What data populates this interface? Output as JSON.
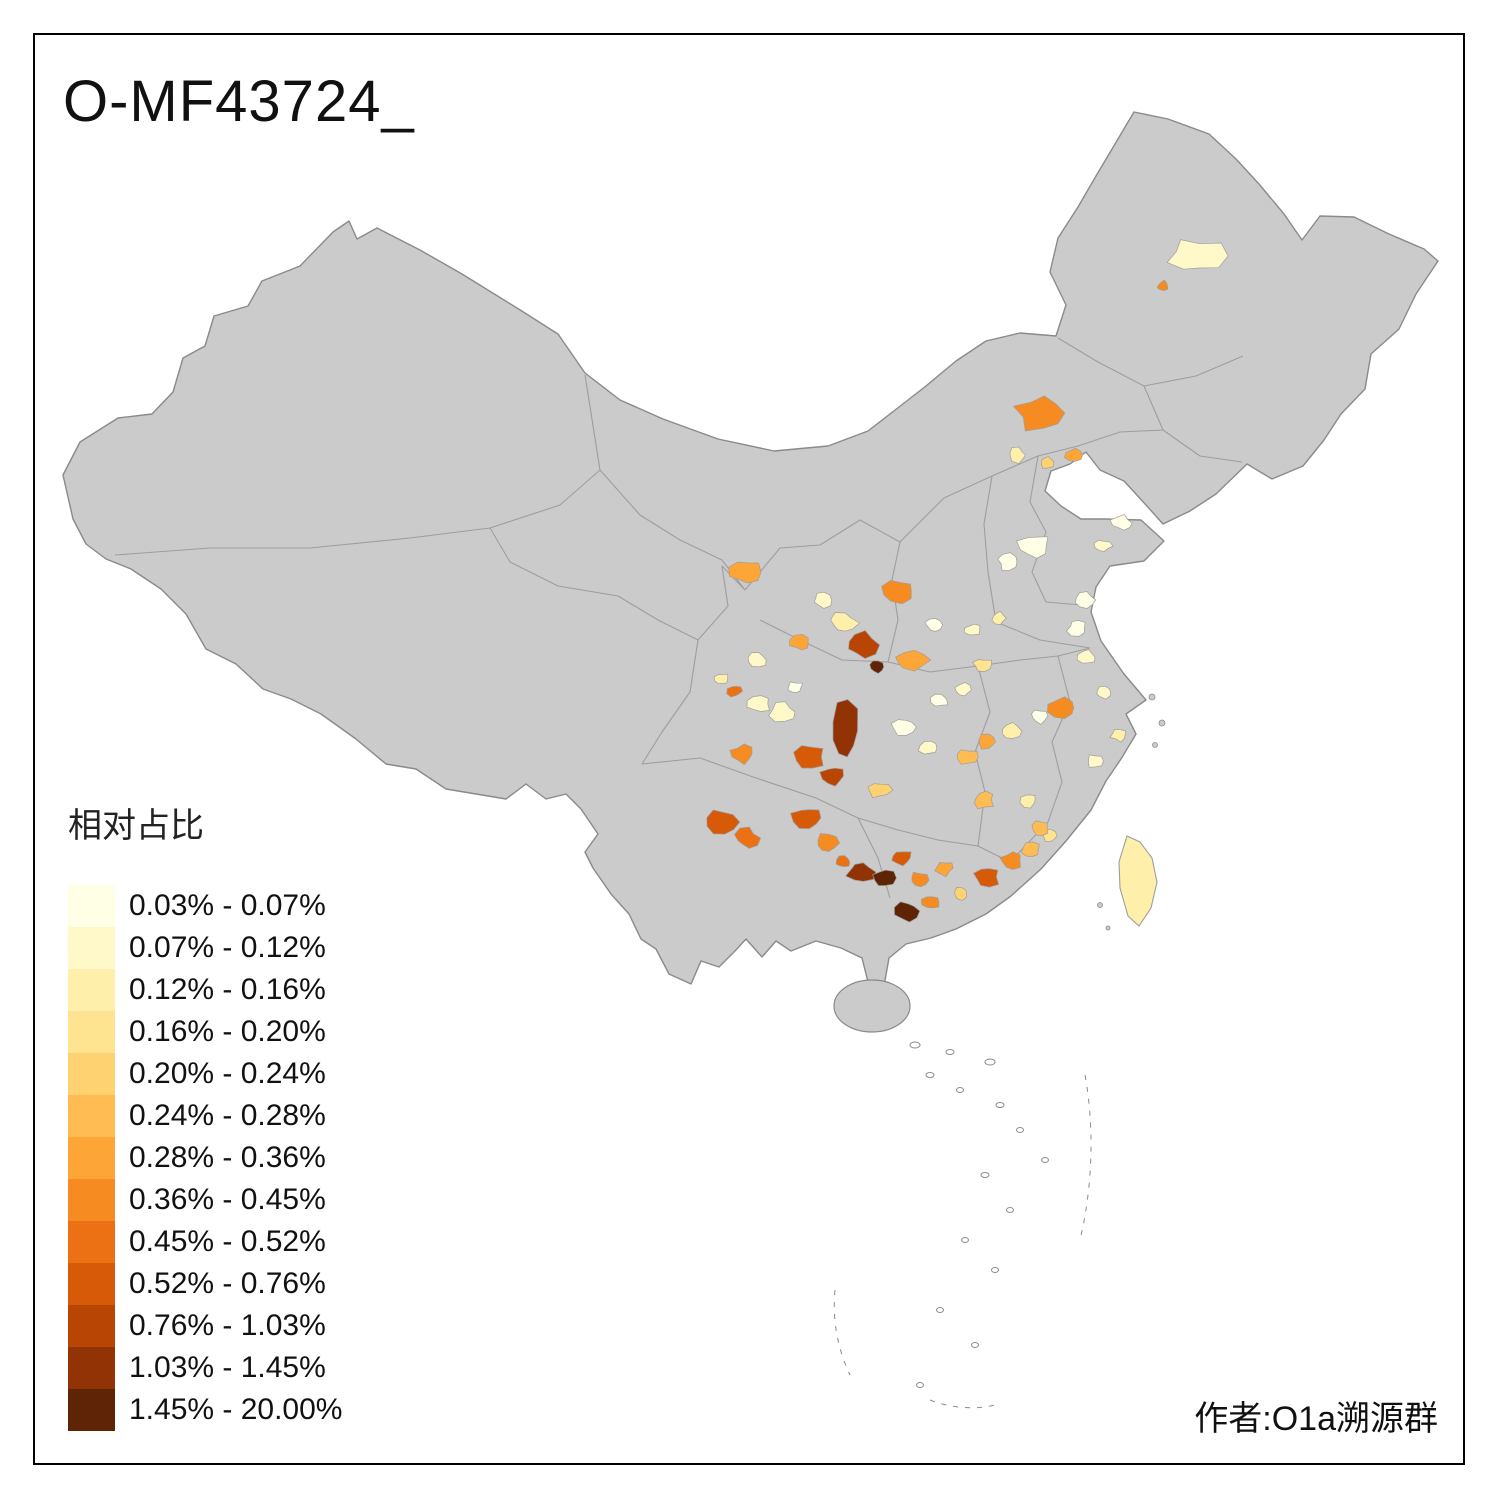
{
  "title": "O-MF43724_",
  "attribution": "作者:O1a溯源群",
  "legend": {
    "title": "相对占比",
    "items": [
      {
        "label": "0.03% - 0.07%",
        "color": "#FFFFE5"
      },
      {
        "label": "0.07% - 0.12%",
        "color": "#FFF8C8"
      },
      {
        "label": "0.12% - 0.16%",
        "color": "#FEF0AB"
      },
      {
        "label": "0.16% - 0.20%",
        "color": "#FEE391"
      },
      {
        "label": "0.20% - 0.24%",
        "color": "#FED271"
      },
      {
        "label": "0.24% - 0.28%",
        "color": "#FEBC52"
      },
      {
        "label": "0.28% - 0.36%",
        "color": "#FEA537"
      },
      {
        "label": "0.36% - 0.45%",
        "color": "#F68B21"
      },
      {
        "label": "0.45% - 0.52%",
        "color": "#EC7014"
      },
      {
        "label": "0.52% - 0.76%",
        "color": "#D65A08"
      },
      {
        "label": "0.76% - 1.03%",
        "color": "#B94504"
      },
      {
        "label": "1.03% - 1.45%",
        "color": "#913305"
      },
      {
        "label": "1.45% - 20.00%",
        "color": "#5F2406"
      }
    ]
  },
  "map": {
    "base_fill": "#CBCBCB",
    "boundary_color": "#8A8A8A",
    "province_line_color": "#9E9E9E",
    "frame_color": "#000000",
    "background": "#FFFFFF"
  }
}
